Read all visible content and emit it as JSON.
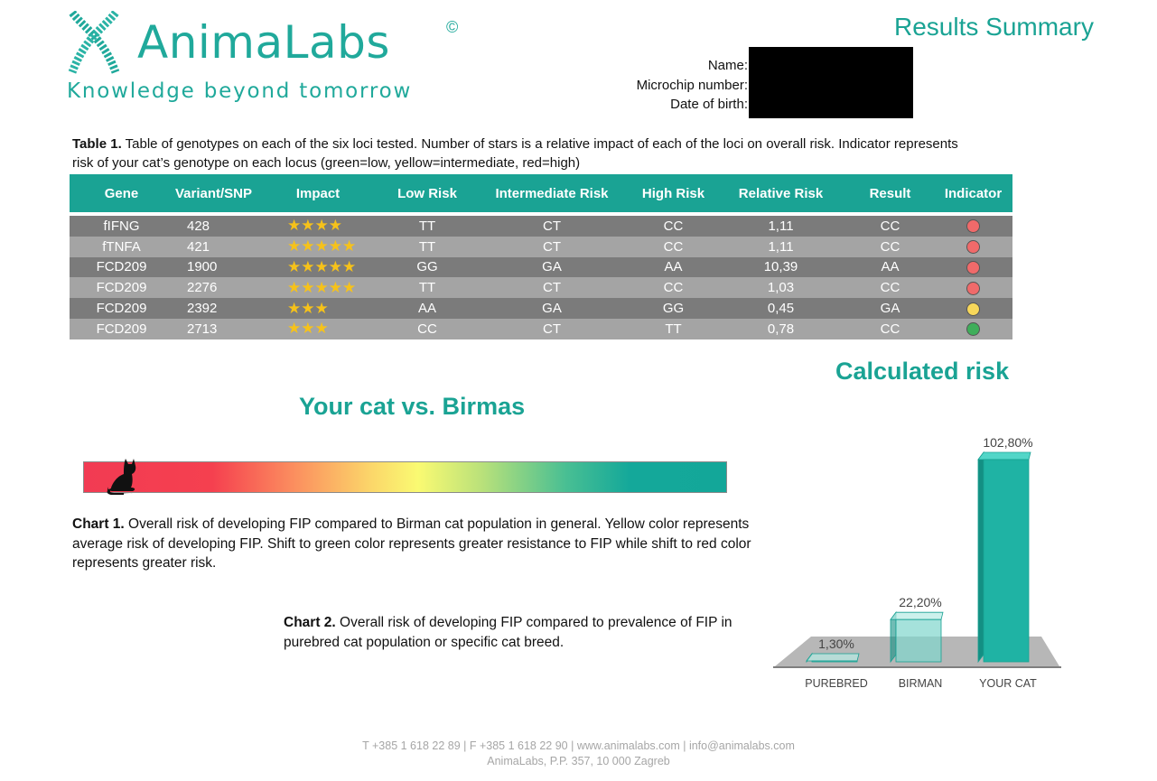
{
  "header": {
    "brand": "AnimaLabs",
    "copyright_mark": "©",
    "tagline": "Knowledge beyond tomorrow",
    "results_title": "Results Summary",
    "owner_labels": [
      "Name:",
      "Microchip number:",
      "Date of birth:"
    ]
  },
  "table": {
    "caption_label": "Table 1.",
    "caption_text": " Table of genotypes on each of the six loci tested. Number of stars is a relative impact of each of the loci on overall risk. Indicator represents risk of your cat’s genotype on each locus (green=low, yellow=intermediate, red=high)",
    "headers": [
      "Gene",
      "Variant/SNP",
      "Impact",
      "Low Risk",
      "Intermediate Risk",
      "High Risk",
      "Relative Risk",
      "Result",
      "Indicator"
    ],
    "rows": [
      {
        "gene": "fIFNG",
        "variant": "428",
        "impact": "★★★★",
        "low": "TT",
        "intermediate": "CT",
        "high": "CC",
        "relative": "1,11",
        "result": "CC",
        "indicator": "red"
      },
      {
        "gene": "fTNFA",
        "variant": "421",
        "impact": "★★★★★",
        "low": "TT",
        "intermediate": "CT",
        "high": "CC",
        "relative": "1,11",
        "result": "CC",
        "indicator": "red"
      },
      {
        "gene": "FCD209",
        "variant": "1900",
        "impact": "★★★★★",
        "low": "GG",
        "intermediate": "GA",
        "high": "AA",
        "relative": "10,39",
        "result": "AA",
        "indicator": "red"
      },
      {
        "gene": "FCD209",
        "variant": "2276",
        "impact": "★★★★★",
        "low": "TT",
        "intermediate": "CT",
        "high": "CC",
        "relative": "1,03",
        "result": "CC",
        "indicator": "red"
      },
      {
        "gene": "FCD209",
        "variant": "2392",
        "impact": "★★★",
        "low": "AA",
        "intermediate": "GA",
        "high": "GG",
        "relative": "0,45",
        "result": "GA",
        "indicator": "yellow"
      },
      {
        "gene": "FCD209",
        "variant": "2713",
        "impact": "★★★",
        "low": "CC",
        "intermediate": "CT",
        "high": "TT",
        "relative": "0,78",
        "result": "CC",
        "indicator": "green"
      }
    ]
  },
  "indicator_colors": {
    "red": "#f06a6a",
    "yellow": "#f7d75a",
    "green": "#3fae5a"
  },
  "chart1": {
    "title": "Your cat vs. Birmas",
    "cat_position": 0.06,
    "caption_label": "Chart 1.",
    "caption_text": " Overall risk of developing FIP compared to Birman cat population in general. Yellow color represents average risk of developing FIP. Shift to green color represents greater resistance to FIP while shift to red color represents greater risk."
  },
  "chart2": {
    "title": "Calculated risk",
    "caption_label": "Chart 2.",
    "caption_text": " Overall risk of developing FIP compared to  prevalence of FIP in purebred cat population or specific cat breed."
  },
  "chart_data": {
    "type": "bar",
    "title": "Calculated risk",
    "categories": [
      "PUREBRED",
      "BIRMAN",
      "YOUR CAT"
    ],
    "values": [
      1.3,
      22.2,
      102.8
    ],
    "value_labels": [
      "1,30%",
      "22,20%",
      "102,80%"
    ],
    "ylim": [
      0,
      102.8
    ],
    "grid": false,
    "style": "3d"
  },
  "footer": {
    "line1": "T +385 1 618 22 89  |  F +385 1 618 22 90  |  www.animalabs.com  |  info@animalabs.com",
    "line2": "AnimaLabs, P.P. 357, 10 000 Zagreb"
  }
}
